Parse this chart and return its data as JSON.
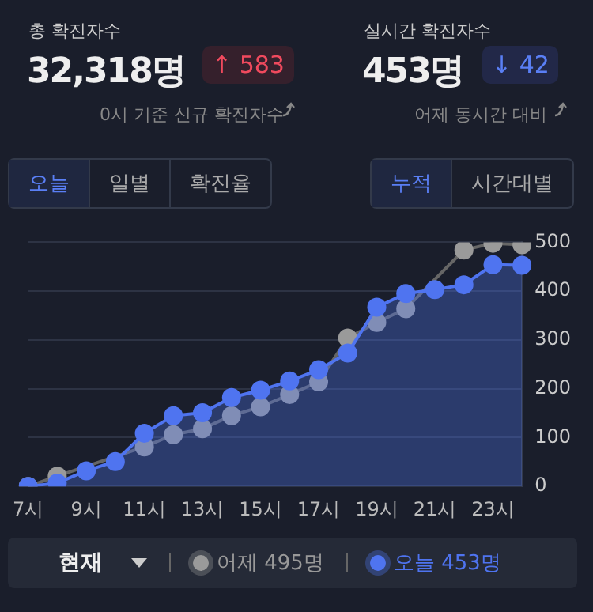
{
  "chart_data": {
    "type": "line",
    "annotations": [
      "총 확진자수",
      "32,318명",
      "↑ 583",
      "0시 기준 신규 확진자수",
      "실시간 확진자수",
      "453명",
      "↓ 42",
      "어제 동시간 대비",
      "오늘",
      "일별",
      "확진율",
      "누적",
      "시간대별",
      "현재"
    ],
    "categories": [
      "7시",
      null,
      "9시",
      null,
      "11시",
      null,
      "13시",
      null,
      "15시",
      null,
      "17시",
      null,
      "19시",
      null,
      "21시",
      null,
      "23시",
      null
    ],
    "series": [
      {
        "name": "어제 495명",
        "type": "line",
        "color": "#9a9a9a",
        "values": [
          0,
          21,
          null,
          null,
          81,
          106,
          118,
          145,
          163,
          188,
          214,
          304,
          336,
          364,
          null,
          484,
          498,
          495
        ]
      },
      {
        "name": "오늘 453명",
        "type": "area",
        "color": "#4f74f0",
        "values": [
          0,
          7,
          32,
          51,
          109,
          145,
          151,
          182,
          197,
          216,
          239,
          273,
          367,
          395,
          403,
          413,
          454,
          453
        ]
      }
    ],
    "ylim": [
      0,
      500
    ],
    "yticks": [
      0,
      100,
      200,
      300,
      400,
      500
    ],
    "grid": "y",
    "legend": "bottom",
    "marker": "circle"
  }
}
